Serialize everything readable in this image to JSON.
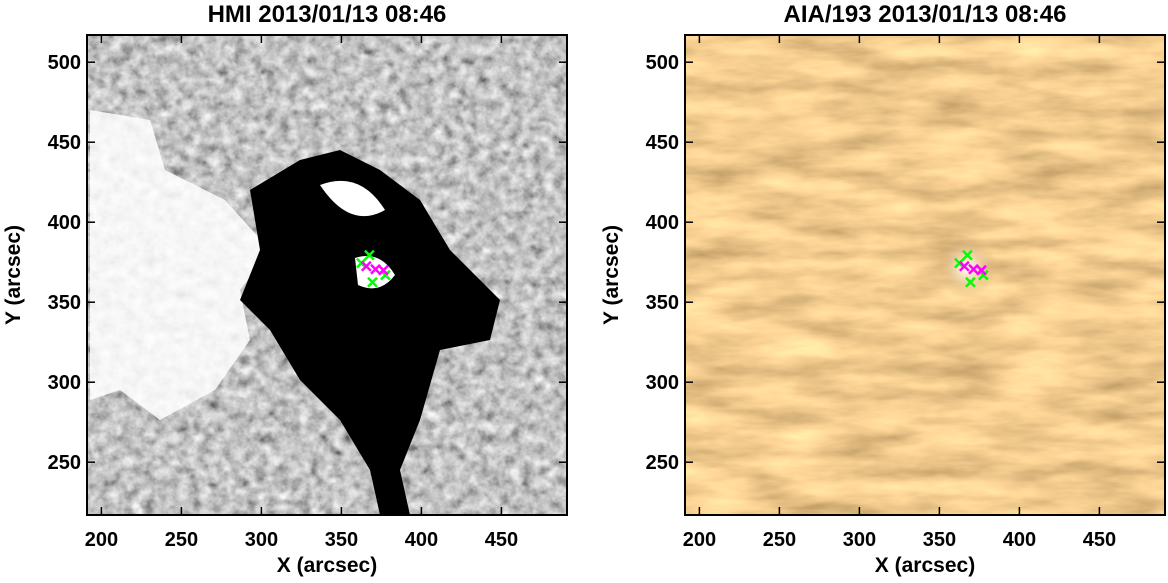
{
  "chart_data": [
    {
      "type": "image",
      "title": "HMI 2013/01/13 08:46",
      "xlabel": "X (arcsec)",
      "ylabel": "Y (arcsec)",
      "xlim": [
        191,
        491
      ],
      "ylim": [
        217,
        517
      ],
      "xticks": [
        200,
        250,
        300,
        350,
        400,
        450
      ],
      "yticks": [
        250,
        300,
        350,
        400,
        450,
        500
      ],
      "series": [
        {
          "color": "#00ff00",
          "x": [
            367.5,
            362.5,
            369.4,
            377.5
          ],
          "y": [
            379.4,
            374.4,
            362.5,
            366.9
          ]
        },
        {
          "color": "#ff00ff",
          "x": [
            365.6,
            371.3,
            376.3
          ],
          "y": [
            372.5,
            370.6,
            370.0
          ]
        }
      ]
    },
    {
      "type": "image",
      "title": "AIA/193 2013/01/13 08:46",
      "xlabel": "X (arcsec)",
      "ylabel": "Y (arcsec)",
      "xlim": [
        191,
        491
      ],
      "ylim": [
        217,
        517
      ],
      "xticks": [
        200,
        250,
        300,
        350,
        400,
        450
      ],
      "yticks": [
        250,
        300,
        350,
        400,
        450,
        500
      ],
      "series": [
        {
          "color": "#00ff00",
          "x": [
            367.5,
            362.5,
            369.4,
            377.5
          ],
          "y": [
            379.4,
            374.4,
            362.5,
            366.9
          ]
        },
        {
          "color": "#ff00ff",
          "x": [
            365.6,
            371.3,
            376.3
          ],
          "y": [
            372.5,
            370.6,
            370.0
          ]
        }
      ]
    }
  ]
}
